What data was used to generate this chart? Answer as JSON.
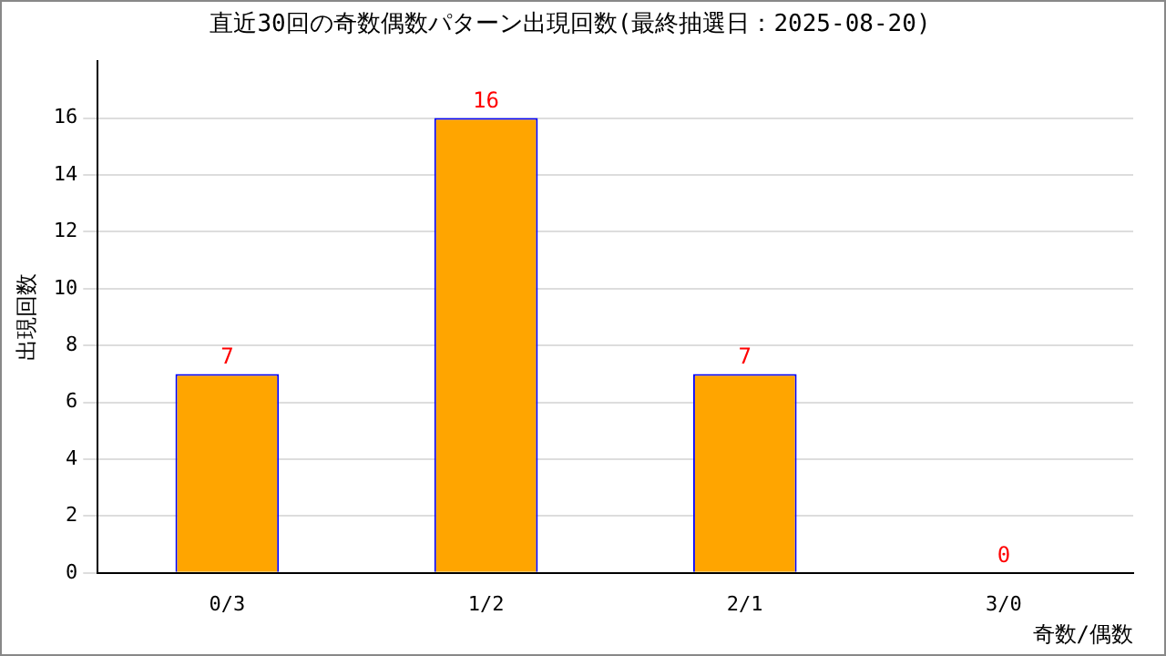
{
  "chart_data": {
    "type": "bar",
    "title": "直近30回の奇数偶数パターン出現回数(最終抽選日：2025-08-20)",
    "xlabel": "奇数/偶数",
    "ylabel": "出現回数",
    "categories": [
      "0/3",
      "1/2",
      "2/1",
      "3/0"
    ],
    "values": [
      7,
      16,
      7,
      0
    ],
    "color": "#ffa500",
    "ylim": [
      0,
      18
    ],
    "yticks": [
      0,
      2,
      4,
      6,
      8,
      10,
      12,
      14,
      16
    ],
    "grid": "y",
    "data_labels": true,
    "legend": false
  }
}
